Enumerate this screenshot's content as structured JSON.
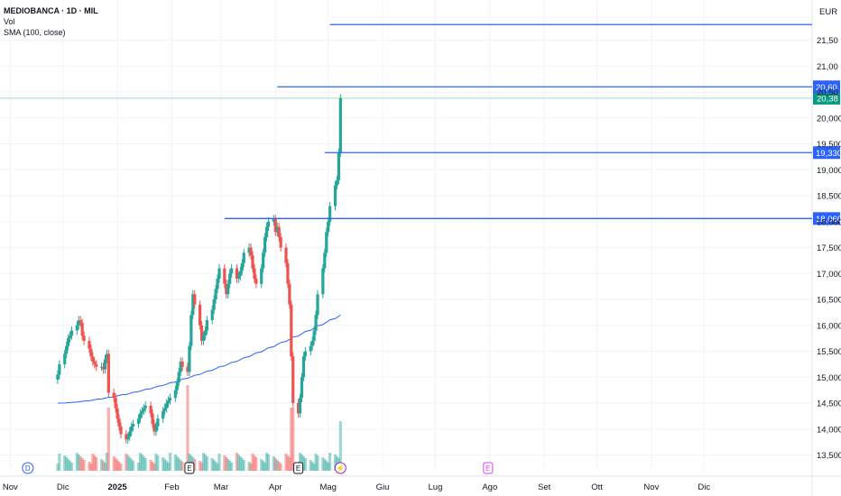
{
  "legend": {
    "title": "MEDIOBANCA · 1D · MIL",
    "vol": "Vol",
    "sma": "SMA (100, close)"
  },
  "currency": "EUR",
  "colors": {
    "up": "#26a69a",
    "down": "#ef5350",
    "line": "#2962ff",
    "sma": "#2962ff",
    "grid": "#f0f3fa",
    "text": "#131722",
    "price_tag": "#089981"
  },
  "chart_data": {
    "type": "candlestick",
    "y_range": [
      13.3,
      22.1
    ],
    "y_ticks": [
      {
        "v": 13.5,
        "t": "13,500"
      },
      {
        "v": 14.0,
        "t": "14,000"
      },
      {
        "v": 14.5,
        "t": "14,500"
      },
      {
        "v": 15.0,
        "t": "15,000"
      },
      {
        "v": 15.5,
        "t": "15,500"
      },
      {
        "v": 16.0,
        "t": "16,000"
      },
      {
        "v": 16.5,
        "t": "16,500"
      },
      {
        "v": 17.0,
        "t": "17,000"
      },
      {
        "v": 17.5,
        "t": "17,500"
      },
      {
        "v": 18.0,
        "t": "18,000"
      },
      {
        "v": 18.5,
        "t": "18,500"
      },
      {
        "v": 19.0,
        "t": "19,000"
      },
      {
        "v": 19.5,
        "t": "19,500"
      },
      {
        "v": 20.0,
        "t": "20,000"
      },
      {
        "v": 20.5,
        "t": "20,50"
      },
      {
        "v": 21.0,
        "t": "21,00"
      },
      {
        "v": 21.5,
        "t": "21,50"
      }
    ],
    "x_labels": [
      {
        "d": "2024-11-01",
        "t": "Nov"
      },
      {
        "d": "2024-12-01",
        "t": "Dic"
      },
      {
        "d": "2025-01-01",
        "t": "2025",
        "bold": true
      },
      {
        "d": "2025-02-01",
        "t": "Feb"
      },
      {
        "d": "2025-03-01",
        "t": "Mar"
      },
      {
        "d": "2025-04-01",
        "t": "Apr"
      },
      {
        "d": "2025-05-01",
        "t": "Mag"
      },
      {
        "d": "2025-06-01",
        "t": "Giu"
      },
      {
        "d": "2025-07-01",
        "t": "Lug"
      },
      {
        "d": "2025-08-01",
        "t": "Ago"
      },
      {
        "d": "2025-09-01",
        "t": "Set"
      },
      {
        "d": "2025-10-01",
        "t": "Ott"
      },
      {
        "d": "2025-11-01",
        "t": "Nov"
      },
      {
        "d": "2025-12-01",
        "t": "Dic"
      }
    ],
    "last_price": {
      "v": 20.38,
      "t": "20,38"
    },
    "horizontal_lines": [
      {
        "v": 21.8,
        "from": "2025-05-02"
      },
      {
        "v": 20.6,
        "from": "2025-04-02",
        "t": "20,60"
      },
      {
        "v": 19.33,
        "from": "2025-04-29",
        "t": "19,330"
      },
      {
        "v": 18.06,
        "from": "2025-03-03",
        "t": "18,060"
      }
    ],
    "events": [
      {
        "d": "2024-11-11",
        "t": "D",
        "color": "#2962ff"
      },
      {
        "d": "2025-02-11",
        "t": "E",
        "color": "#131722"
      },
      {
        "d": "2025-04-14",
        "t": "E",
        "color": "#131722"
      },
      {
        "d": "2025-05-08",
        "t": "⚡",
        "color": "#9c27b0"
      },
      {
        "d": "2025-07-31",
        "t": "E",
        "color": "#e040fb"
      }
    ],
    "closes": [
      15.05,
      15.25,
      15.45,
      15.6,
      15.75,
      15.8,
      15.9,
      16.0,
      16.1,
      16.05,
      15.8,
      15.7,
      15.55,
      15.4,
      15.3,
      15.25,
      15.2,
      15.2,
      15.15,
      15.35,
      15.45,
      14.7,
      14.6,
      14.4,
      14.2,
      14.05,
      13.9,
      13.8,
      13.85,
      13.95,
      14.05,
      14.1,
      14.2,
      14.3,
      14.35,
      14.4,
      14.45,
      14.3,
      14.1,
      13.95,
      14.05,
      14.2,
      14.35,
      14.4,
      14.5,
      14.55,
      14.6,
      14.75,
      14.9,
      15.1,
      15.3,
      15.2,
      15.1,
      15.6,
      16.2,
      16.6,
      16.4,
      16.0,
      15.7,
      15.8,
      15.9,
      16.1,
      16.3,
      16.5,
      16.7,
      16.9,
      17.1,
      16.8,
      16.6,
      16.8,
      17.0,
      17.1,
      16.9,
      16.95,
      17.05,
      17.2,
      17.4,
      17.5,
      17.35,
      17.1,
      16.9,
      16.8,
      17.1,
      17.4,
      17.7,
      17.9,
      18.0,
      18.05,
      17.8,
      17.9,
      17.7,
      17.5,
      17.2,
      16.8,
      16.4,
      15.4,
      14.5,
      14.3,
      14.6,
      15.0,
      15.4,
      15.5,
      15.6,
      15.7,
      15.9,
      16.2,
      16.6,
      17.1,
      17.4,
      17.8,
      18.0,
      18.3,
      18.7,
      18.8,
      19.33,
      20.38
    ],
    "sma_range": [
      14.5,
      16.2
    ]
  }
}
